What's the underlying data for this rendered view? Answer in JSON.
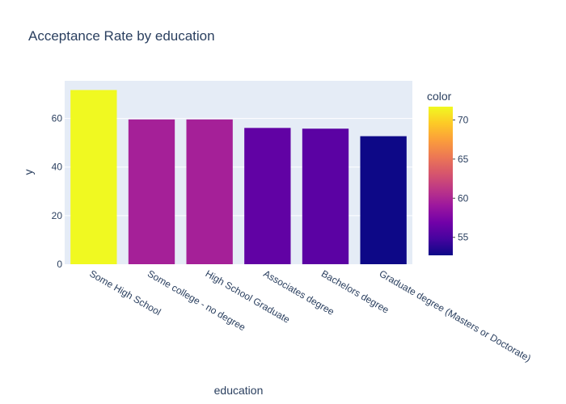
{
  "chart_data": {
    "type": "bar",
    "title": "Acceptance Rate by education",
    "xlabel": "education",
    "ylabel": "y",
    "categories": [
      "Some High School",
      "Some college - no degree",
      "High School Graduate",
      "Associates degree",
      "Bachelors degree",
      "Graduate degree (Masters or Doctorate)"
    ],
    "values": [
      71.7,
      59.6,
      59.6,
      56.1,
      55.8,
      52.7
    ],
    "ylim": [
      0,
      75.5
    ],
    "yticks": [
      "0",
      "20",
      "40",
      "60"
    ],
    "yticks_values": [
      0,
      20,
      40,
      60
    ],
    "grid": true,
    "colorbar": {
      "title": "color",
      "ticks": [
        "55",
        "60",
        "65",
        "70"
      ],
      "tick_values": [
        55,
        60,
        65,
        70
      ],
      "range": [
        52.7,
        71.7
      ],
      "colorscale": [
        "#0d0887",
        "#46039f",
        "#7201a8",
        "#9c179e",
        "#bd3786",
        "#d8576b",
        "#ed7953",
        "#fb9f3a",
        "#fdca26",
        "#f0f921"
      ]
    },
    "colors": {
      "plot_bg": "#e5ecf6",
      "grid": "#ffffff",
      "text": "#2a3f5f"
    }
  }
}
